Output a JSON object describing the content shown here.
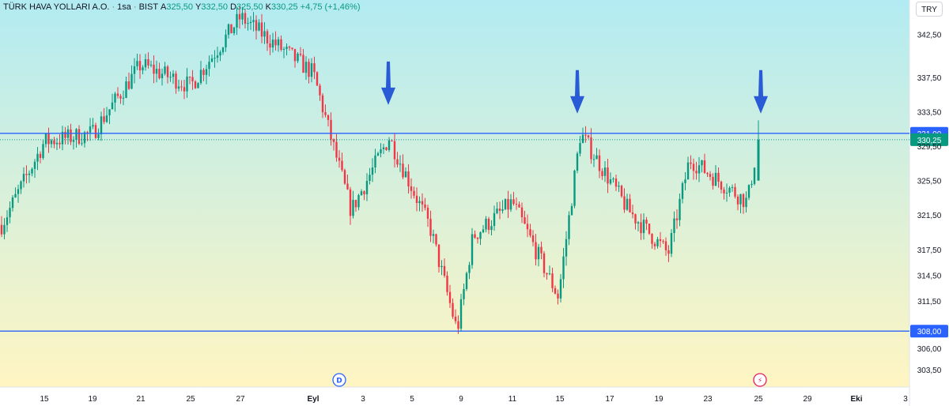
{
  "header": {
    "symbol": "TÜRK HAVA YOLLARI A.O.",
    "interval": "1sa",
    "exchange": "BIST",
    "open_label": "A",
    "open": "325,50",
    "high_label": "Y",
    "high": "332,50",
    "low_label": "D",
    "low": "325,50",
    "close_label": "K",
    "close": "330,25",
    "change": "+4,75 (+1,46%)"
  },
  "currency": "TRY",
  "colors": {
    "up": "#089981",
    "down": "#f23645",
    "line": "#2962ff",
    "arrow": "#2a5bd7",
    "bg_top": "#b2ebf2",
    "bg_bottom": "#fff5c2"
  },
  "chart_data": {
    "type": "candlestick",
    "ylim": [
      301.5,
      346.5
    ],
    "y_ticks": [
      "342,50",
      "337,50",
      "333,50",
      "329,50",
      "325,50",
      "321,50",
      "317,50",
      "314,50",
      "311,50",
      "306,00",
      "303,50"
    ],
    "x_ticks": [
      "15",
      "19",
      "21",
      "25",
      "27",
      "Eyl",
      "3",
      "5",
      "9",
      "11",
      "15",
      "17",
      "19",
      "23",
      "25",
      "29",
      "Eki",
      "3"
    ],
    "horizontal_lines": [
      {
        "price": 331.0,
        "label": "331,00"
      },
      {
        "price": 308.0,
        "label": "308,00"
      }
    ],
    "last_price": {
      "price": 330.25,
      "label": "330,25"
    },
    "event_markers": [
      {
        "x_tick": "Eyl",
        "label": "D"
      },
      {
        "x_tick": "25",
        "label": "⚡"
      }
    ],
    "annotations": [
      {
        "type": "down-arrow",
        "near": "3 Eyl",
        "price": 333.5
      },
      {
        "type": "down-arrow",
        "near": "15 Eyl",
        "price": 332.5
      },
      {
        "type": "down-arrow",
        "near": "25 Eyl",
        "price": 332.5
      }
    ],
    "key_points": [
      {
        "near": "13 Ağu",
        "price": 320.0
      },
      {
        "near": "15 Ağu",
        "price": 330.0
      },
      {
        "near": "19 Ağu",
        "price": 331.0
      },
      {
        "near": "21 Ağu",
        "price": 339.0
      },
      {
        "near": "25 Ağu",
        "price": 336.5
      },
      {
        "near": "27 Ağu",
        "price": 344.5
      },
      {
        "near": "Eyl",
        "price": 338.0
      },
      {
        "near": "2 Eyl",
        "price": 322.0
      },
      {
        "near": "3 Eyl",
        "price": 330.5
      },
      {
        "near": "5 Eyl",
        "price": 320.0
      },
      {
        "near": "9 Eyl",
        "price": 308.0
      },
      {
        "near": "10 Eyl",
        "price": 319.0
      },
      {
        "near": "11 Eyl",
        "price": 323.0
      },
      {
        "near": "13 Eyl",
        "price": 312.0
      },
      {
        "near": "15 Eyl",
        "price": 331.0
      },
      {
        "near": "17 Eyl",
        "price": 322.0
      },
      {
        "near": "19 Eyl",
        "price": 317.0
      },
      {
        "near": "20 Eyl",
        "price": 328.0
      },
      {
        "near": "24 Eyl",
        "price": 323.0
      },
      {
        "near": "25 Eyl",
        "price": 330.25
      }
    ]
  }
}
